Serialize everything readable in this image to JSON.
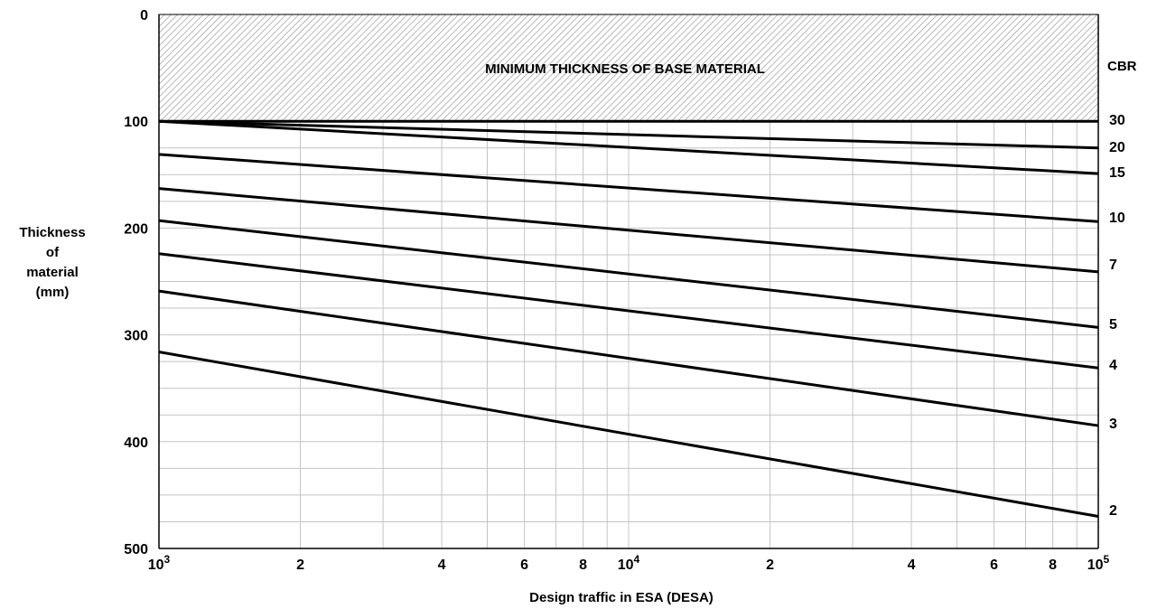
{
  "chart_data": {
    "type": "line",
    "x_scale": "log",
    "xlim": [
      1000,
      100000
    ],
    "ylim": [
      0,
      500
    ],
    "y_inverted": true,
    "grid": true,
    "xlabel": "Design traffic in ESA (DESA)",
    "ylabel_lines": [
      "Thickness",
      "of",
      "material",
      "(mm)"
    ],
    "legend_title": "CBR",
    "band": {
      "label": "MINIMUM THICKNESS OF BASE MATERIAL",
      "y_from": 0,
      "y_to": 100
    },
    "y_ticks": [
      {
        "value": 0,
        "label": "0"
      },
      {
        "value": 100,
        "label": "100"
      },
      {
        "value": 200,
        "label": "200"
      },
      {
        "value": 300,
        "label": "300"
      },
      {
        "value": 400,
        "label": "400"
      },
      {
        "value": 500,
        "label": "500"
      }
    ],
    "x_ticks": [
      {
        "value": 1000,
        "base": "10",
        "exp": "3",
        "label": ""
      },
      {
        "value": 2000,
        "base": "",
        "exp": "",
        "label": "2"
      },
      {
        "value": 4000,
        "base": "",
        "exp": "",
        "label": "4"
      },
      {
        "value": 6000,
        "base": "",
        "exp": "",
        "label": "6"
      },
      {
        "value": 8000,
        "base": "",
        "exp": "",
        "label": "8"
      },
      {
        "value": 10000,
        "base": "10",
        "exp": "4",
        "label": ""
      },
      {
        "value": 20000,
        "base": "",
        "exp": "",
        "label": "2"
      },
      {
        "value": 40000,
        "base": "",
        "exp": "",
        "label": "4"
      },
      {
        "value": 60000,
        "base": "",
        "exp": "",
        "label": "6"
      },
      {
        "value": 80000,
        "base": "",
        "exp": "",
        "label": "8"
      },
      {
        "value": 100000,
        "base": "10",
        "exp": "5",
        "label": ""
      }
    ],
    "series": [
      {
        "name": "30",
        "x": [
          1000,
          100000
        ],
        "y": [
          100,
          100
        ]
      },
      {
        "name": "20",
        "x": [
          1000,
          100000
        ],
        "y": [
          100,
          125
        ]
      },
      {
        "name": "15",
        "x": [
          1000,
          100000
        ],
        "y": [
          100,
          149
        ]
      },
      {
        "name": "10",
        "x": [
          1000,
          100000
        ],
        "y": [
          131,
          194
        ]
      },
      {
        "name": "7",
        "x": [
          1000,
          100000
        ],
        "y": [
          163,
          241
        ]
      },
      {
        "name": "5",
        "x": [
          1000,
          100000
        ],
        "y": [
          193,
          293
        ]
      },
      {
        "name": "4",
        "x": [
          1000,
          100000
        ],
        "y": [
          224,
          331
        ]
      },
      {
        "name": "3",
        "x": [
          1000,
          100000
        ],
        "y": [
          259,
          385
        ]
      },
      {
        "name": "2",
        "x": [
          1000,
          100000
        ],
        "y": [
          316,
          470
        ]
      }
    ]
  }
}
